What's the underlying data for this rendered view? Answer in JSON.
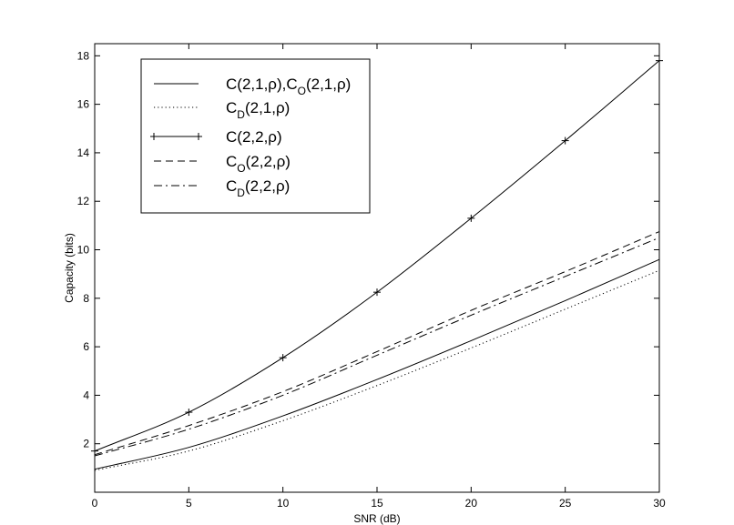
{
  "chart_data": {
    "type": "line",
    "xlabel": "SNR (dB)",
    "ylabel": "Capacity (bits)",
    "xlim": [
      0,
      30
    ],
    "ylim": [
      0,
      18.5
    ],
    "xticks": [
      0,
      5,
      10,
      15,
      20,
      25,
      30
    ],
    "yticks": [
      2,
      4,
      6,
      8,
      10,
      12,
      14,
      16,
      18
    ],
    "grid": false,
    "legend_position": "top-left",
    "x": [
      0,
      5,
      10,
      15,
      20,
      25,
      30
    ],
    "series": [
      {
        "name": "C(2,1,ρ),C_O(2,1,ρ)",
        "label_parts": [
          [
            "C(2,1,ρ),C",
            ""
          ],
          [
            "O",
            "sub"
          ],
          [
            "(2,1,ρ)",
            ""
          ]
        ],
        "values": [
          0.95,
          1.85,
          3.15,
          4.65,
          6.25,
          7.9,
          9.6
        ],
        "style": "solid",
        "marker": "none",
        "color": "#000000"
      },
      {
        "name": "C_D(2,1,ρ)",
        "label_parts": [
          [
            "C",
            ""
          ],
          [
            "D",
            "sub"
          ],
          [
            "(2,1,ρ)",
            ""
          ]
        ],
        "values": [
          0.9,
          1.7,
          2.95,
          4.4,
          5.95,
          7.55,
          9.15
        ],
        "style": "dotted",
        "marker": "none",
        "color": "#000000"
      },
      {
        "name": "C(2,2,ρ)",
        "label_parts": [
          [
            "C(2,2,ρ)",
            ""
          ]
        ],
        "values": [
          1.7,
          3.3,
          5.55,
          8.25,
          11.3,
          14.5,
          17.8
        ],
        "style": "solid",
        "marker": "plus",
        "color": "#000000"
      },
      {
        "name": "C_O(2,2,ρ)",
        "label_parts": [
          [
            "C",
            ""
          ],
          [
            "O",
            "sub"
          ],
          [
            "(2,2,ρ)",
            ""
          ]
        ],
        "values": [
          1.55,
          2.75,
          4.15,
          5.8,
          7.5,
          9.1,
          10.75
        ],
        "style": "dashed",
        "marker": "none",
        "color": "#000000"
      },
      {
        "name": "C_D(2,2,ρ)",
        "label_parts": [
          [
            "C",
            ""
          ],
          [
            "D",
            "sub"
          ],
          [
            "(2,2,ρ)",
            ""
          ]
        ],
        "values": [
          1.5,
          2.6,
          4.0,
          5.65,
          7.3,
          8.9,
          10.5
        ],
        "style": "dashdot",
        "marker": "none",
        "color": "#000000"
      }
    ]
  }
}
